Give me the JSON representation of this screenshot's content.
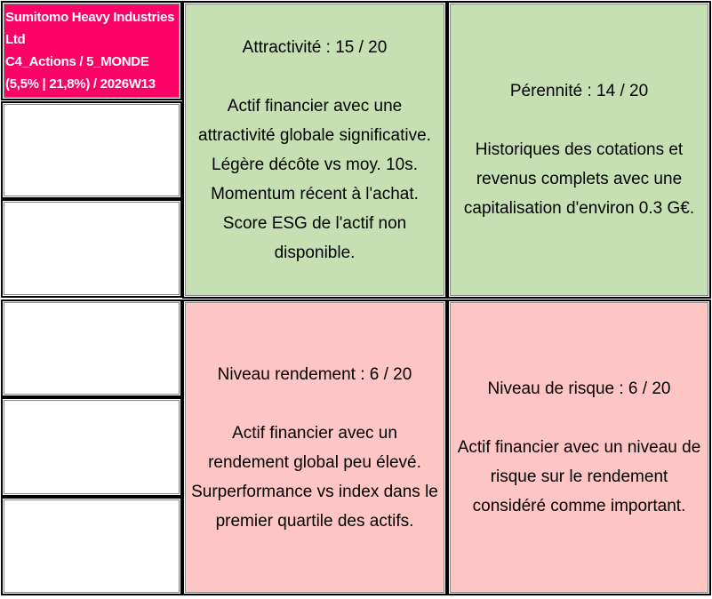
{
  "header": {
    "name": "Sumitomo Heavy Industries Ltd",
    "category": "C4_Actions / 5_MONDE",
    "stats": "(5,5% | 21,8%) / 2026W13",
    "color": "#ff0066"
  },
  "cells": [
    {
      "title": "Attractivité : 15 / 20",
      "lines": [
        "Actif financier avec une",
        "attractivité globale significative.",
        "Légère décôte vs moy. 10s.",
        "Momentum récent à l'achat.",
        "Score ESG de l'actif non",
        "disponible."
      ],
      "color": "#c6e0b4"
    },
    {
      "title": "Pérennité : 14 / 20",
      "lines": [
        "Historiques des cotations et",
        "revenus complets avec une",
        "capitalisation d'environ 0.3 G€."
      ],
      "color": "#c6e0b4"
    },
    {
      "title": "Niveau rendement : 6 / 20",
      "lines": [
        "Actif financier avec un",
        "rendement global peu élevé.",
        "Surperformance vs index dans le",
        "premier quartile des actifs."
      ],
      "color": "#ffc4c4"
    },
    {
      "title": "Niveau de risque : 6 / 20",
      "lines": [
        "Actif financier avec un niveau de",
        "risque sur le rendement",
        "considéré comme important."
      ],
      "color": "#ffc4c4"
    }
  ]
}
